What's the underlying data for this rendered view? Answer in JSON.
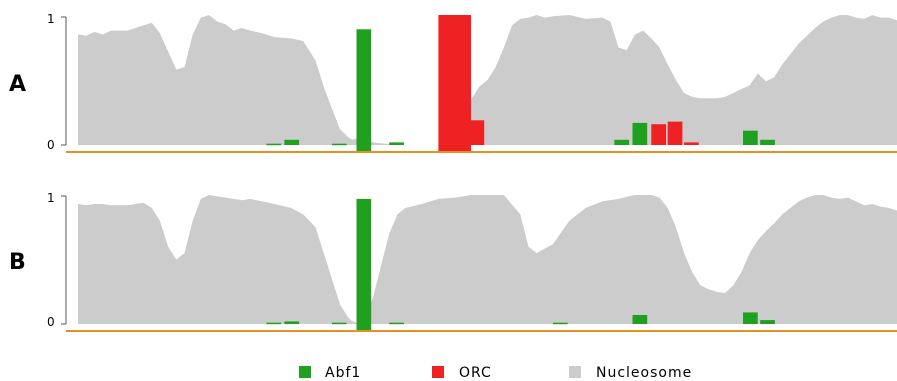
{
  "colors": {
    "abf1": "#1fa01f",
    "orc": "#ee2222",
    "nucleosome": "#cccccc",
    "baseline": "#e69020",
    "axis": "#555555"
  },
  "legend": [
    {
      "label": "Abf1",
      "color": "#1fa01f"
    },
    {
      "label": "ORC",
      "color": "#ee2222"
    },
    {
      "label": "Nucleosome",
      "color": "#cccccc"
    }
  ],
  "chart_data": [
    {
      "panel": "A",
      "type": "area",
      "ylim": [
        0,
        1
      ],
      "yticks": [
        "0",
        "1"
      ],
      "x_range": [
        0,
        1000
      ],
      "nucleosome": {
        "name": "Nucleosome",
        "x": [
          0,
          10,
          20,
          30,
          40,
          60,
          80,
          90,
          100,
          110,
          120,
          130,
          140,
          150,
          160,
          170,
          180,
          190,
          200,
          210,
          225,
          240,
          260,
          275,
          290,
          300,
          310,
          320,
          330,
          335,
          340,
          350,
          360,
          375,
          400,
          430,
          450,
          460,
          470,
          480,
          490,
          500,
          510,
          520,
          530,
          540,
          550,
          560,
          570,
          580,
          600,
          620,
          640,
          650,
          660,
          670,
          680,
          690,
          700,
          710,
          720,
          730,
          740,
          750,
          760,
          770,
          780,
          790,
          800,
          810,
          820,
          830,
          840,
          850,
          860,
          870,
          880,
          890,
          900,
          910,
          920,
          930,
          940,
          950,
          960,
          970,
          980,
          990,
          1000
        ],
        "y": [
          0.85,
          0.84,
          0.87,
          0.85,
          0.88,
          0.88,
          0.92,
          0.94,
          0.86,
          0.72,
          0.58,
          0.6,
          0.85,
          0.98,
          1.0,
          0.95,
          0.93,
          0.88,
          0.9,
          0.88,
          0.86,
          0.83,
          0.82,
          0.8,
          0.65,
          0.45,
          0.28,
          0.12,
          0.06,
          0.04,
          0.05,
          0.04,
          0.02,
          0.01,
          0.0,
          0.0,
          0.0,
          0.02,
          0.2,
          0.35,
          0.45,
          0.5,
          0.6,
          0.75,
          0.92,
          0.97,
          0.98,
          1.0,
          0.98,
          0.99,
          1.0,
          0.97,
          0.98,
          0.95,
          0.75,
          0.73,
          0.85,
          0.88,
          0.82,
          0.75,
          0.62,
          0.5,
          0.4,
          0.37,
          0.36,
          0.36,
          0.36,
          0.37,
          0.4,
          0.43,
          0.46,
          0.55,
          0.49,
          0.52,
          0.62,
          0.7,
          0.78,
          0.84,
          0.9,
          0.95,
          0.98,
          1.0,
          1.0,
          0.98,
          0.97,
          1.0,
          0.98,
          0.98,
          0.96
        ]
      },
      "bars": [
        {
          "series": "Abf1",
          "x": 230,
          "value": 0.01,
          "below": 0
        },
        {
          "series": "Abf1",
          "x": 252,
          "value": 0.04,
          "below": 0
        },
        {
          "series": "Abf1",
          "x": 310,
          "value": 0.01,
          "below": 0
        },
        {
          "series": "Abf1",
          "x": 340,
          "value": 0.89,
          "below": 0.06
        },
        {
          "series": "Abf1",
          "x": 380,
          "value": 0.02,
          "below": 0
        },
        {
          "series": "Abf1",
          "x": 655,
          "value": 0.04,
          "below": 0
        },
        {
          "series": "Abf1",
          "x": 677,
          "value": 0.17,
          "below": 0
        },
        {
          "series": "Abf1",
          "x": 812,
          "value": 0.11,
          "below": 0
        },
        {
          "series": "Abf1",
          "x": 833,
          "value": 0.04,
          "below": 0
        },
        {
          "series": "ORC",
          "x": 440,
          "value": 1.0,
          "below": 0.06
        },
        {
          "series": "ORC",
          "x": 478,
          "value": 0.19,
          "below": 0
        },
        {
          "series": "ORC",
          "x": 700,
          "value": 0.16,
          "below": 0
        },
        {
          "series": "ORC",
          "x": 720,
          "value": 0.18,
          "below": 0
        },
        {
          "series": "ORC",
          "x": 740,
          "value": 0.02,
          "below": 0
        }
      ]
    },
    {
      "panel": "B",
      "type": "area",
      "ylim": [
        0,
        1
      ],
      "yticks": [
        "0",
        "1"
      ],
      "x_range": [
        0,
        1000
      ],
      "nucleosome": {
        "name": "Nucleosome",
        "x": [
          0,
          10,
          20,
          30,
          40,
          60,
          80,
          90,
          100,
          110,
          120,
          130,
          140,
          150,
          160,
          170,
          180,
          190,
          200,
          210,
          225,
          240,
          260,
          275,
          290,
          300,
          310,
          320,
          330,
          335,
          340,
          350,
          360,
          370,
          380,
          390,
          400,
          420,
          440,
          460,
          480,
          500,
          520,
          540,
          550,
          560,
          580,
          600,
          620,
          640,
          660,
          680,
          700,
          710,
          720,
          730,
          740,
          750,
          760,
          770,
          780,
          790,
          800,
          810,
          820,
          830,
          840,
          850,
          860,
          870,
          880,
          890,
          900,
          910,
          920,
          930,
          940,
          950,
          960,
          970,
          980,
          990,
          1000
        ],
        "y": [
          0.93,
          0.92,
          0.93,
          0.93,
          0.92,
          0.92,
          0.94,
          0.9,
          0.8,
          0.6,
          0.5,
          0.55,
          0.8,
          0.97,
          1.0,
          0.99,
          0.98,
          0.97,
          0.96,
          0.97,
          0.95,
          0.93,
          0.9,
          0.85,
          0.75,
          0.55,
          0.35,
          0.15,
          0.05,
          0.02,
          0.01,
          0.05,
          0.2,
          0.45,
          0.7,
          0.85,
          0.9,
          0.93,
          0.97,
          0.98,
          1.0,
          1.0,
          1.0,
          0.85,
          0.6,
          0.55,
          0.62,
          0.8,
          0.9,
          0.95,
          0.97,
          1.0,
          1.0,
          0.98,
          0.9,
          0.75,
          0.55,
          0.4,
          0.3,
          0.27,
          0.25,
          0.24,
          0.3,
          0.4,
          0.55,
          0.65,
          0.72,
          0.78,
          0.85,
          0.9,
          0.95,
          0.98,
          1.0,
          1.0,
          0.98,
          0.97,
          0.98,
          0.95,
          0.92,
          0.93,
          0.91,
          0.9,
          0.88
        ]
      },
      "bars": [
        {
          "series": "Abf1",
          "x": 230,
          "value": 0.01,
          "below": 0
        },
        {
          "series": "Abf1",
          "x": 252,
          "value": 0.02,
          "below": 0
        },
        {
          "series": "Abf1",
          "x": 310,
          "value": 0.01,
          "below": 0
        },
        {
          "series": "Abf1",
          "x": 340,
          "value": 0.97,
          "below": 0.06
        },
        {
          "series": "Abf1",
          "x": 380,
          "value": 0.01,
          "below": 0
        },
        {
          "series": "Abf1",
          "x": 580,
          "value": 0.01,
          "below": 0
        },
        {
          "series": "Abf1",
          "x": 677,
          "value": 0.07,
          "below": 0
        },
        {
          "series": "Abf1",
          "x": 812,
          "value": 0.09,
          "below": 0
        },
        {
          "series": "Abf1",
          "x": 833,
          "value": 0.03,
          "below": 0
        }
      ]
    }
  ]
}
